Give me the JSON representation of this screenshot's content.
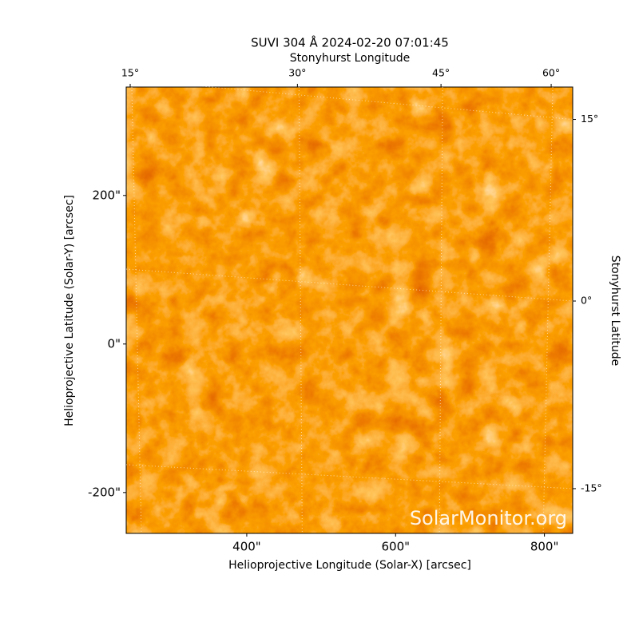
{
  "chart_data": {
    "type": "image",
    "title": "SUVI 304 Å 2024-02-20 07:01:45",
    "xlabel": "Helioprojective Longitude (Solar-X) [arcsec]",
    "ylabel": "Helioprojective Latitude (Solar-Y) [arcsec]",
    "x2label": "Stonyhurst Longitude",
    "y2label": "Stonyhurst Latitude",
    "watermark": "SolarMonitor.org",
    "xlim": [
      238,
      838
    ],
    "ylim": [
      -255,
      346
    ],
    "xticks": [
      {
        "value": 400,
        "label": "400\""
      },
      {
        "value": 600,
        "label": "600\""
      },
      {
        "value": 800,
        "label": "800\""
      }
    ],
    "yticks": [
      {
        "value": -200,
        "label": "-200\""
      },
      {
        "value": 0,
        "label": "0\""
      },
      {
        "value": 200,
        "label": "200\""
      }
    ],
    "x2ticks": [
      {
        "value": 15,
        "label": "15°"
      },
      {
        "value": 30,
        "label": "30°"
      },
      {
        "value": 45,
        "label": "45°"
      },
      {
        "value": 60,
        "label": "60°"
      }
    ],
    "y2ticks": [
      {
        "value": 15,
        "label": "15°"
      },
      {
        "value": 0,
        "label": "0°"
      },
      {
        "value": -15,
        "label": "-15°"
      }
    ],
    "grid": true
  }
}
